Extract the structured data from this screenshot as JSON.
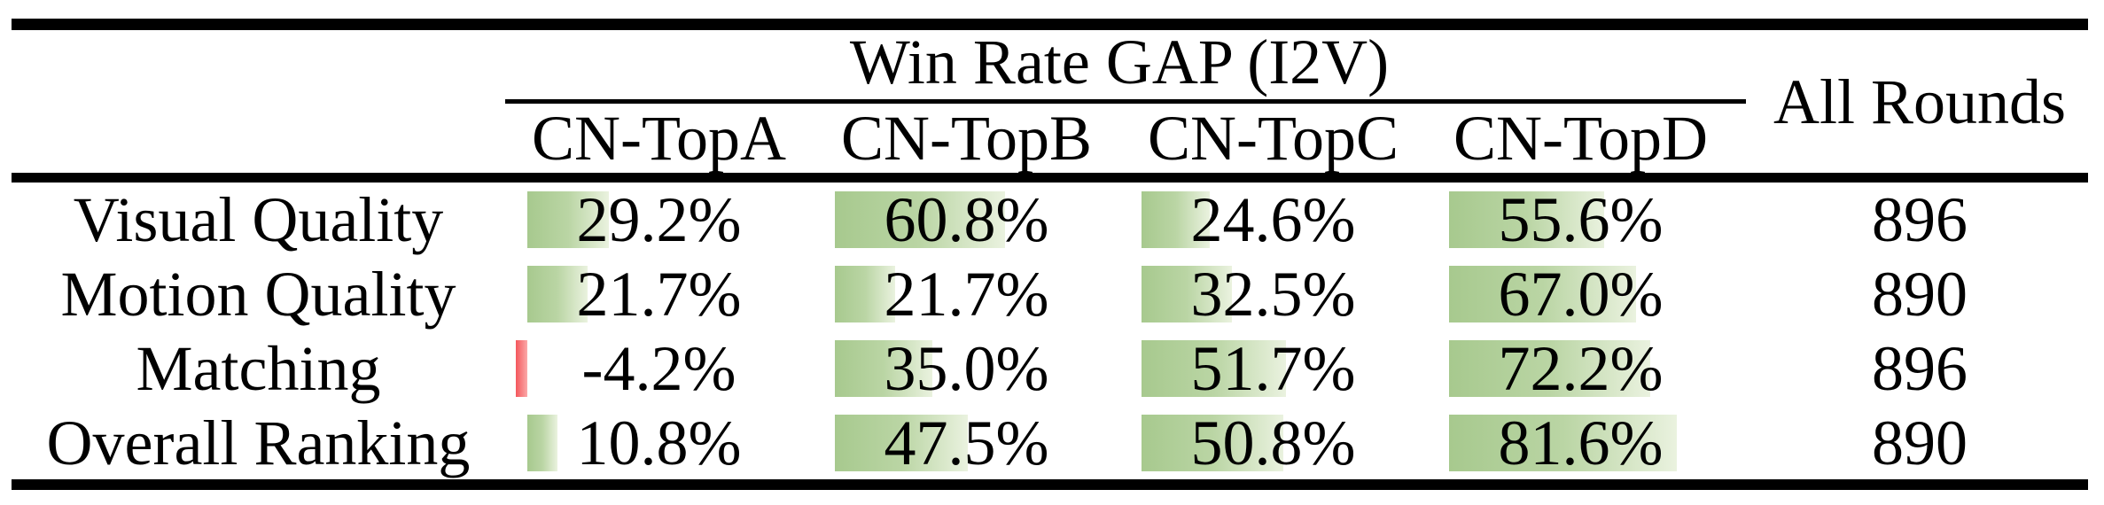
{
  "table": {
    "title": "Win Rate GAP (I2V)",
    "all_rounds_label": "All Rounds",
    "columns": [
      "CN-TopA",
      "CN-TopB",
      "CN-TopC",
      "CN-TopD"
    ],
    "rows": [
      {
        "label": "Visual Quality",
        "cells": [
          {
            "text": "29.2%",
            "value": 29.2
          },
          {
            "text": "60.8%",
            "value": 60.8
          },
          {
            "text": "24.6%",
            "value": 24.6
          },
          {
            "text": "55.6%",
            "value": 55.6
          }
        ],
        "all_rounds": "896"
      },
      {
        "label": "Motion Quality",
        "cells": [
          {
            "text": "21.7%",
            "value": 21.7
          },
          {
            "text": "21.7%",
            "value": 21.7
          },
          {
            "text": "32.5%",
            "value": 32.5
          },
          {
            "text": "67.0%",
            "value": 67.0
          }
        ],
        "all_rounds": "890"
      },
      {
        "label": "Matching",
        "cells": [
          {
            "text": "-4.2%",
            "value": -4.2
          },
          {
            "text": "35.0%",
            "value": 35.0
          },
          {
            "text": "51.7%",
            "value": 51.7
          },
          {
            "text": "72.2%",
            "value": 72.2
          }
        ],
        "all_rounds": "896"
      },
      {
        "label": "Overall Ranking",
        "cells": [
          {
            "text": "10.8%",
            "value": 10.8
          },
          {
            "text": "47.5%",
            "value": 47.5
          },
          {
            "text": "50.8%",
            "value": 50.8
          },
          {
            "text": "81.6%",
            "value": 81.6
          }
        ],
        "all_rounds": "890"
      }
    ],
    "colors": {
      "bar_positive_start": "#a7c98e",
      "bar_positive_end": "#eaf2df",
      "bar_negative_start": "#f4575c",
      "bar_negative_end": "#fba9a9",
      "rule": "#000000",
      "text": "#000000"
    }
  },
  "chart_data": {
    "type": "table",
    "title": "Win Rate GAP (I2V)",
    "categories": [
      "Visual Quality",
      "Motion Quality",
      "Matching",
      "Overall Ranking"
    ],
    "series": [
      {
        "name": "CN-TopA",
        "values": [
          29.2,
          21.7,
          -4.2,
          10.8
        ]
      },
      {
        "name": "CN-TopB",
        "values": [
          60.8,
          21.7,
          35.0,
          47.5
        ]
      },
      {
        "name": "CN-TopC",
        "values": [
          24.6,
          32.5,
          51.7,
          50.8
        ]
      },
      {
        "name": "CN-TopD",
        "values": [
          55.6,
          67.0,
          72.2,
          81.6
        ]
      }
    ],
    "all_rounds": [
      896,
      890,
      896,
      890
    ],
    "unit": "%",
    "layout": "data bars rendered behind cell values, green for positive, red for negative"
  }
}
